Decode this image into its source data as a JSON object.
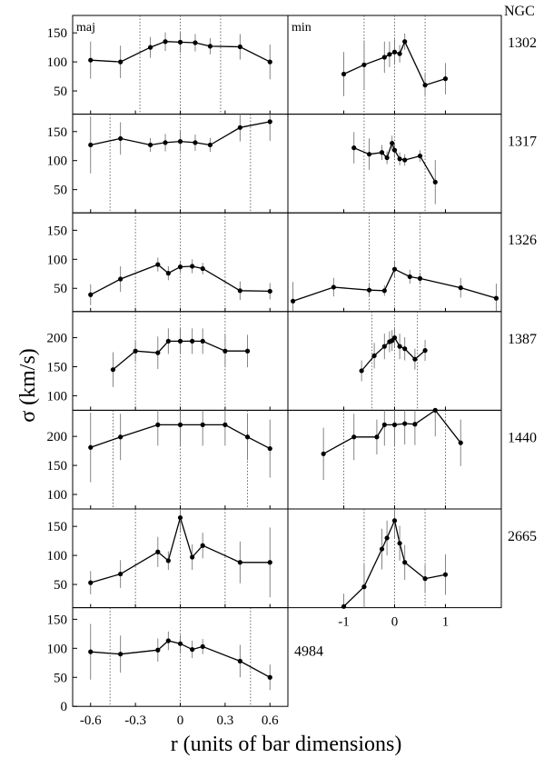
{
  "figure": {
    "ngc_header": "NGC",
    "ylabel": "σ (km/s)",
    "xlabel": "r (units of bar dimensions)",
    "major_axis_label": "maj",
    "minor_axis_label": "min"
  },
  "chart_data": [
    {
      "type": "line",
      "galaxy": "1302",
      "maj": {
        "x": [
          -0.6,
          -0.4,
          -0.2,
          -0.1,
          0,
          0.1,
          0.2,
          0.4,
          0.6
        ],
        "y": [
          103,
          100,
          125,
          135,
          134,
          133,
          127,
          126,
          100
        ],
        "err": [
          32,
          28,
          18,
          16,
          18,
          15,
          14,
          22,
          30
        ],
        "ylim": [
          10,
          180
        ],
        "yticks": [
          50,
          100,
          150
        ],
        "xlim": [
          -0.72,
          0.72
        ],
        "xticks": [
          "-0.6",
          "-0.3",
          "0",
          "0.3",
          "0.6"
        ],
        "vlines": [
          -0.27,
          0,
          0.27
        ]
      },
      "min": {
        "x": [
          -1,
          -0.6,
          -0.2,
          -0.1,
          0,
          0.1,
          0.2,
          0.6,
          1
        ],
        "y": [
          79,
          95,
          108,
          113,
          117,
          114,
          135,
          60,
          71
        ],
        "err": [
          38,
          42,
          27,
          22,
          22,
          15,
          14,
          20,
          27
        ],
        "ylim": [
          10,
          180
        ],
        "xlim": [
          -2.1,
          2.1
        ],
        "xticks": [
          "-1",
          "0",
          "1"
        ],
        "vlines": [
          -0.6,
          0,
          0.6
        ]
      }
    },
    {
      "type": "line",
      "galaxy": "1317",
      "maj": {
        "x": [
          -0.6,
          -0.4,
          -0.2,
          -0.1,
          0,
          0.1,
          0.2,
          0.4,
          0.6
        ],
        "y": [
          127,
          138,
          127,
          131,
          133,
          131,
          127,
          157,
          167
        ],
        "err": [
          49,
          28,
          12,
          15,
          17,
          14,
          12,
          24,
          33
        ],
        "ylim": [
          10,
          180
        ],
        "yticks": [
          50,
          100,
          150
        ],
        "xlim": [
          -0.72,
          0.72
        ],
        "xticks": [
          "-0.6",
          "-0.3",
          "0",
          "0.3",
          "0.6"
        ],
        "vlines": [
          -0.47,
          0,
          0.47
        ]
      },
      "min": {
        "x": [
          -0.8,
          -0.5,
          -0.25,
          -0.15,
          -0.05,
          0,
          0.1,
          0.2,
          0.5,
          0.8
        ],
        "y": [
          122,
          111,
          114,
          105,
          130,
          118,
          103,
          101,
          108,
          63
        ],
        "err": [
          27,
          27,
          13,
          11,
          13,
          13,
          11,
          10,
          10,
          38
        ],
        "ylim": [
          10,
          180
        ],
        "xlim": [
          -2.1,
          2.1
        ],
        "xticks": [
          "-1",
          "0",
          "1"
        ],
        "vlines": [
          -0.6,
          0,
          0.6
        ]
      }
    },
    {
      "type": "line",
      "galaxy": "1326",
      "maj": {
        "x": [
          -0.6,
          -0.4,
          -0.15,
          -0.08,
          0,
          0.08,
          0.15,
          0.4,
          0.6
        ],
        "y": [
          39,
          66,
          91,
          76,
          87,
          88,
          84,
          46,
          45
        ],
        "err": [
          18,
          22,
          12,
          12,
          10,
          12,
          10,
          16,
          14
        ],
        "ylim": [
          10,
          180
        ],
        "yticks": [
          50,
          100,
          150
        ],
        "xlim": [
          -0.72,
          0.72
        ],
        "xticks": [
          "-0.6",
          "-0.3",
          "0",
          "0.3",
          "0.6"
        ],
        "vlines": [
          -0.3,
          0,
          0.3
        ]
      },
      "min": {
        "x": [
          -2,
          -1.2,
          -0.5,
          -0.2,
          0,
          0.3,
          0.5,
          1.3,
          2
        ],
        "y": [
          28,
          52,
          47,
          46,
          83,
          70,
          67,
          51,
          33
        ],
        "err": [
          33,
          16,
          10,
          9,
          13,
          12,
          10,
          17,
          25
        ],
        "ylim": [
          10,
          180
        ],
        "xlim": [
          -2.1,
          2.1
        ],
        "xticks": [
          "-1",
          "0",
          "1"
        ],
        "vlines": [
          -0.5,
          0,
          0.5
        ]
      }
    },
    {
      "type": "line",
      "galaxy": "1387",
      "maj": {
        "x": [
          -0.45,
          -0.3,
          -0.15,
          -0.08,
          0,
          0.08,
          0.15,
          0.3,
          0.45
        ],
        "y": [
          145,
          177,
          174,
          194,
          194,
          194,
          194,
          177,
          177
        ],
        "err": [
          30,
          18,
          28,
          22,
          22,
          22,
          22,
          28,
          28
        ],
        "ylim": [
          75,
          245
        ],
        "yticks": [
          100,
          150,
          200
        ],
        "xlim": [
          -0.72,
          0.72
        ],
        "xticks": [
          "-0.6",
          "-0.3",
          "0",
          "0.3",
          "0.6"
        ],
        "vlines": [
          -0.3,
          0,
          0.3
        ]
      },
      "min": {
        "x": [
          -0.65,
          -0.4,
          -0.2,
          -0.1,
          -0.05,
          0,
          0.1,
          0.2,
          0.4,
          0.6
        ],
        "y": [
          143,
          169,
          185,
          193,
          195,
          200,
          185,
          181,
          163,
          178
        ],
        "err": [
          18,
          22,
          22,
          18,
          18,
          18,
          22,
          20,
          18,
          18
        ],
        "ylim": [
          75,
          245
        ],
        "xlim": [
          -2.1,
          2.1
        ],
        "xticks": [
          "-1",
          "0",
          "1"
        ],
        "vlines": [
          -0.45,
          0,
          0.45
        ]
      }
    },
    {
      "type": "line",
      "galaxy": "1440",
      "maj": {
        "x": [
          -0.6,
          -0.4,
          -0.15,
          0,
          0.15,
          0.3,
          0.45,
          0.6
        ],
        "y": [
          181,
          199,
          220,
          220,
          220,
          220,
          199,
          179
        ],
        "err": [
          60,
          40,
          36,
          36,
          36,
          36,
          40,
          50
        ],
        "ylim": [
          75,
          245
        ],
        "yticks": [
          100,
          150,
          200
        ],
        "xlim": [
          -0.72,
          0.72
        ],
        "xticks": [
          "-0.6",
          "-0.3",
          "0",
          "0.3",
          "0.6"
        ],
        "vlines": [
          -0.45,
          0,
          0.45
        ]
      },
      "min": {
        "x": [
          -1.4,
          -0.8,
          -0.35,
          -0.2,
          0,
          0.2,
          0.4,
          0.8,
          1.3
        ],
        "y": [
          170,
          199,
          199,
          220,
          220,
          222,
          221,
          245,
          189
        ],
        "err": [
          45,
          40,
          30,
          36,
          36,
          36,
          36,
          45,
          40
        ],
        "ylim": [
          75,
          245
        ],
        "xlim": [
          -2.1,
          2.1
        ],
        "xticks": [
          "-1",
          "0",
          "1"
        ],
        "vlines": [
          -1,
          0,
          1
        ]
      }
    },
    {
      "type": "line",
      "galaxy": "2665",
      "maj": {
        "x": [
          -0.6,
          -0.4,
          -0.15,
          -0.08,
          0,
          0.08,
          0.15,
          0.4,
          0.6
        ],
        "y": [
          53,
          68,
          106,
          91,
          165,
          97,
          117,
          88,
          88
        ],
        "err": [
          20,
          24,
          26,
          16,
          24,
          22,
          22,
          36,
          60
        ],
        "ylim": [
          10,
          180
        ],
        "yticks": [
          50,
          100,
          150
        ],
        "xlim": [
          -0.72,
          0.72
        ],
        "xticks": [
          "-0.6",
          "-0.3",
          "0",
          "0.3",
          "0.6"
        ],
        "vlines": [
          -0.3,
          0,
          0.3
        ]
      },
      "min": {
        "x": [
          -1,
          -0.6,
          -0.25,
          -0.15,
          0,
          0.1,
          0.2,
          0.6,
          1
        ],
        "y": [
          12,
          46,
          111,
          130,
          160,
          121,
          88,
          60,
          67
        ],
        "err": [
          22,
          40,
          35,
          30,
          30,
          30,
          30,
          24,
          35
        ],
        "ylim": [
          10,
          180
        ],
        "xlim": [
          -2.1,
          2.1
        ],
        "xticks": [
          "-1",
          "0",
          "1"
        ],
        "vlines": [
          -0.6,
          0,
          0.6
        ]
      }
    },
    {
      "type": "line",
      "galaxy": "4984",
      "maj": {
        "x": [
          -0.6,
          -0.4,
          -0.15,
          -0.08,
          0,
          0.08,
          0.15,
          0.4,
          0.6
        ],
        "y": [
          94,
          90,
          97,
          113,
          108,
          98,
          103,
          78,
          50
        ],
        "err": [
          48,
          32,
          20,
          16,
          15,
          15,
          13,
          28,
          22
        ],
        "ylim": [
          0,
          170
        ],
        "yticks": [
          0,
          50,
          100,
          150
        ],
        "xlim": [
          -0.72,
          0.72
        ],
        "xticks": [
          "-0.6",
          "-0.3",
          "0",
          "0.3",
          "0.6"
        ],
        "vlines": [
          -0.47,
          0,
          0.47
        ]
      }
    }
  ]
}
